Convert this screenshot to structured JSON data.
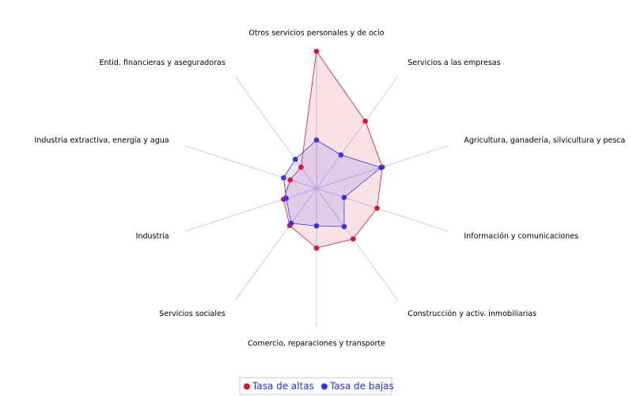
{
  "chart_data": {
    "type": "radar",
    "categories": [
      "Otros servicios personales y de ocio",
      "Servicios a las empresas",
      "Agricultura, ganadería, silvicultura y pesca",
      "Información y comunicaciones",
      "Construcción y activ. inmobiliarias",
      "Comercio, reparaciones y transporte",
      "Servicios sociales",
      "Industria",
      "Industria extractiva, energía y agua",
      "Entid. financieras y aseguradoras"
    ],
    "series": [
      {
        "name": "Tasa de altas",
        "color": "#dc143c",
        "values": [
          99,
          60,
          50,
          46,
          45,
          43,
          33,
          25,
          20,
          19
        ]
      },
      {
        "name": "Tasa de bajas",
        "color": "#3333ee",
        "values": [
          35,
          30,
          49,
          21,
          34,
          27,
          31,
          23,
          25,
          26
        ]
      }
    ],
    "rlim": [
      0,
      100
    ]
  }
}
